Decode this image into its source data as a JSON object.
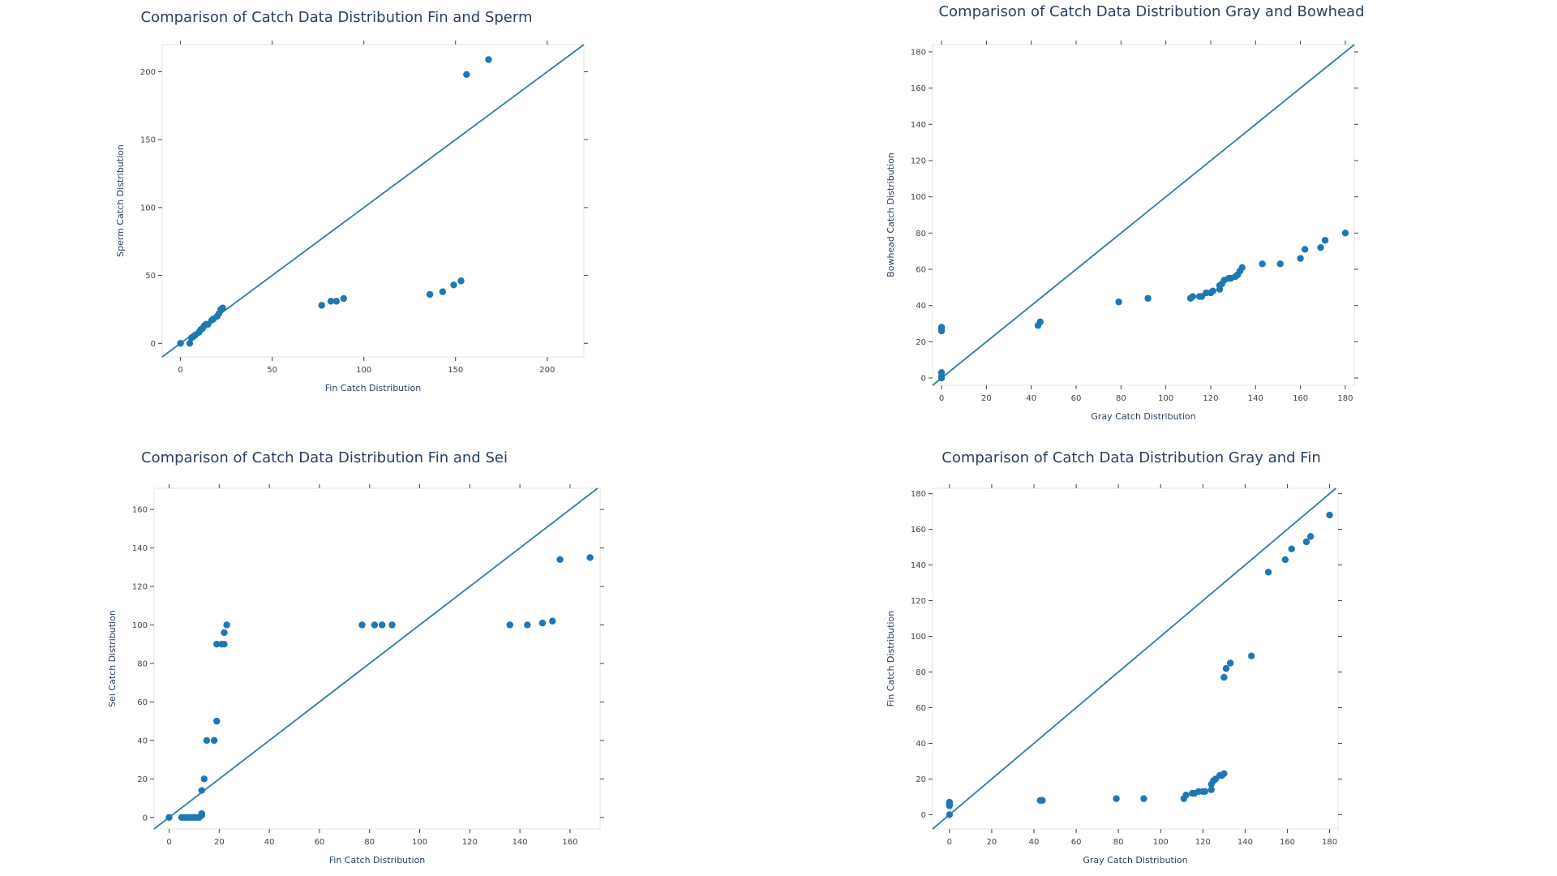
{
  "chart_data": [
    {
      "type": "scatter",
      "title": "Comparison of Catch Data Distribution Fin and Sperm",
      "xlabel": "Fin Catch Distribution",
      "ylabel": "Sperm Catch Distribution",
      "xlim": [
        -10,
        220
      ],
      "ylim": [
        -10,
        220
      ],
      "xticks": [
        0,
        50,
        100,
        150,
        200
      ],
      "yticks": [
        0,
        50,
        100,
        150,
        200
      ],
      "reference_line": "y = x",
      "marker_color": "#1f77b4",
      "line_color": "#2e7f9a",
      "points": [
        [
          0,
          0
        ],
        [
          5,
          0
        ],
        [
          6,
          4
        ],
        [
          7,
          5
        ],
        [
          8,
          6
        ],
        [
          10,
          8
        ],
        [
          11,
          10
        ],
        [
          12,
          11
        ],
        [
          13,
          13
        ],
        [
          14,
          14
        ],
        [
          15,
          14
        ],
        [
          17,
          17
        ],
        [
          18,
          18
        ],
        [
          20,
          20
        ],
        [
          21,
          22
        ],
        [
          22,
          25
        ],
        [
          23,
          26
        ],
        [
          77,
          28
        ],
        [
          82,
          31
        ],
        [
          85,
          31
        ],
        [
          89,
          33
        ],
        [
          136,
          36
        ],
        [
          143,
          38
        ],
        [
          149,
          43
        ],
        [
          153,
          46
        ],
        [
          156,
          198
        ],
        [
          168,
          209
        ]
      ]
    },
    {
      "type": "scatter",
      "title": "Comparison of Catch Data Distribution Gray and Bowhead",
      "xlabel": "Gray Catch Distribution",
      "ylabel": "Bowhead Catch Distribution",
      "xlim": [
        -4,
        184
      ],
      "ylim": [
        -4,
        184
      ],
      "xticks": [
        0,
        20,
        40,
        60,
        80,
        100,
        120,
        140,
        160,
        180
      ],
      "yticks": [
        0,
        20,
        40,
        60,
        80,
        100,
        120,
        140,
        160,
        180
      ],
      "reference_line": "y = x",
      "marker_color": "#1f77b4",
      "line_color": "#2e7f9a",
      "points": [
        [
          0,
          0
        ],
        [
          0,
          1
        ],
        [
          0,
          3
        ],
        [
          0,
          26
        ],
        [
          0,
          27
        ],
        [
          0,
          28
        ],
        [
          43,
          29
        ],
        [
          44,
          31
        ],
        [
          79,
          42
        ],
        [
          92,
          44
        ],
        [
          111,
          44
        ],
        [
          112,
          45
        ],
        [
          115,
          45
        ],
        [
          116,
          45
        ],
        [
          118,
          47
        ],
        [
          120,
          47
        ],
        [
          121,
          48
        ],
        [
          124,
          49
        ],
        [
          124,
          51
        ],
        [
          125,
          52
        ],
        [
          126,
          54
        ],
        [
          128,
          55
        ],
        [
          129,
          55
        ],
        [
          131,
          56
        ],
        [
          132,
          57
        ],
        [
          133,
          59
        ],
        [
          134,
          61
        ],
        [
          143,
          63
        ],
        [
          151,
          63
        ],
        [
          160,
          66
        ],
        [
          162,
          71
        ],
        [
          169,
          72
        ],
        [
          171,
          76
        ],
        [
          180,
          80
        ]
      ]
    },
    {
      "type": "scatter",
      "title": "Comparison of Catch Data Distribution Fin and Sei",
      "xlabel": "Fin Catch Distribution",
      "ylabel": "Sei Catch Distribution",
      "xlim": [
        -6,
        172
      ],
      "ylim": [
        -6,
        171
      ],
      "xticks": [
        0,
        20,
        40,
        60,
        80,
        100,
        120,
        140,
        160
      ],
      "yticks": [
        0,
        20,
        40,
        60,
        80,
        100,
        120,
        140,
        160
      ],
      "reference_line": "y = x",
      "marker_color": "#1f77b4",
      "line_color": "#2e7f9a",
      "points": [
        [
          0,
          0
        ],
        [
          5,
          0
        ],
        [
          6,
          0
        ],
        [
          7,
          0
        ],
        [
          8,
          0
        ],
        [
          9,
          0
        ],
        [
          10,
          0
        ],
        [
          11,
          0
        ],
        [
          12,
          0
        ],
        [
          13,
          1
        ],
        [
          13,
          2
        ],
        [
          13,
          14
        ],
        [
          14,
          20
        ],
        [
          15,
          40
        ],
        [
          18,
          40
        ],
        [
          19,
          50
        ],
        [
          19,
          90
        ],
        [
          21,
          90
        ],
        [
          22,
          90
        ],
        [
          22,
          96
        ],
        [
          23,
          100
        ],
        [
          77,
          100
        ],
        [
          82,
          100
        ],
        [
          85,
          100
        ],
        [
          89,
          100
        ],
        [
          136,
          100
        ],
        [
          143,
          100
        ],
        [
          149,
          101
        ],
        [
          153,
          102
        ],
        [
          156,
          134
        ],
        [
          168,
          135
        ]
      ]
    },
    {
      "type": "scatter",
      "title": "Comparison of Catch Data Distribution Gray and Fin",
      "xlabel": "Gray Catch Distribution",
      "ylabel": "Fin Catch Distribution",
      "xlim": [
        -8,
        184
      ],
      "ylim": [
        -8,
        183
      ],
      "xticks": [
        0,
        20,
        40,
        60,
        80,
        100,
        120,
        140,
        160,
        180
      ],
      "yticks": [
        0,
        20,
        40,
        60,
        80,
        100,
        120,
        140,
        160,
        180
      ],
      "reference_line": "y = x",
      "marker_color": "#1f77b4",
      "line_color": "#2e7f9a",
      "points": [
        [
          0,
          0
        ],
        [
          0,
          5
        ],
        [
          0,
          6
        ],
        [
          0,
          7
        ],
        [
          43,
          8
        ],
        [
          44,
          8
        ],
        [
          79,
          9
        ],
        [
          92,
          9
        ],
        [
          111,
          9
        ],
        [
          112,
          11
        ],
        [
          115,
          12
        ],
        [
          116,
          12
        ],
        [
          118,
          13
        ],
        [
          120,
          13
        ],
        [
          121,
          13
        ],
        [
          124,
          14
        ],
        [
          124,
          17
        ],
        [
          125,
          19
        ],
        [
          126,
          20
        ],
        [
          128,
          22
        ],
        [
          129,
          22
        ],
        [
          130,
          23
        ],
        [
          130,
          77
        ],
        [
          131,
          82
        ],
        [
          133,
          85
        ],
        [
          143,
          89
        ],
        [
          151,
          136
        ],
        [
          159,
          143
        ],
        [
          162,
          149
        ],
        [
          169,
          153
        ],
        [
          171,
          156
        ],
        [
          180,
          168
        ]
      ]
    }
  ]
}
